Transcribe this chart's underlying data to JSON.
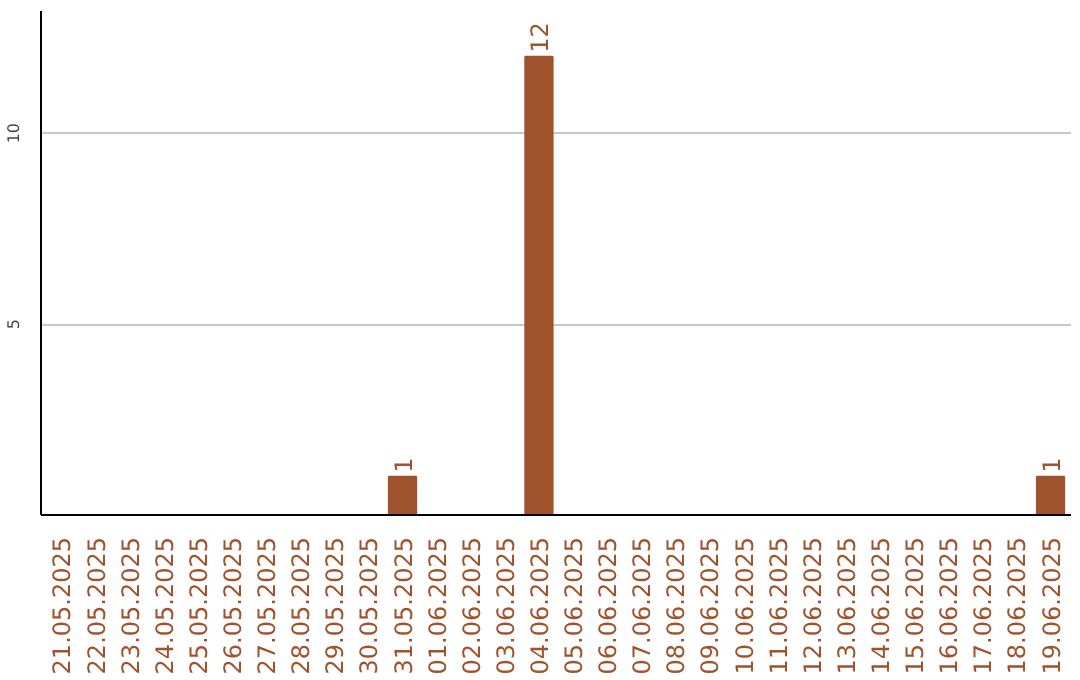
{
  "chart_data": {
    "type": "bar",
    "categories": [
      "21.05.2025",
      "22.05.2025",
      "23.05.2025",
      "24.05.2025",
      "25.05.2025",
      "26.05.2025",
      "27.05.2025",
      "28.05.2025",
      "29.05.2025",
      "30.05.2025",
      "31.05.2025",
      "01.06.2025",
      "02.06.2025",
      "03.06.2025",
      "04.06.2025",
      "05.06.2025",
      "06.06.2025",
      "07.06.2025",
      "08.06.2025",
      "09.06.2025",
      "10.06.2025",
      "11.06.2025",
      "12.06.2025",
      "13.06.2025",
      "14.06.2025",
      "15.06.2025",
      "16.06.2025",
      "17.06.2025",
      "18.06.2025",
      "19.06.2025"
    ],
    "values": [
      0,
      0,
      0,
      0,
      0,
      0,
      0,
      0,
      0,
      0,
      1,
      0,
      0,
      0,
      12,
      0,
      0,
      0,
      0,
      0,
      0,
      0,
      0,
      0,
      0,
      0,
      0,
      0,
      0,
      1
    ],
    "value_labels": [
      null,
      null,
      null,
      null,
      null,
      null,
      null,
      null,
      null,
      null,
      "1",
      null,
      null,
      null,
      "12",
      null,
      null,
      null,
      null,
      null,
      null,
      null,
      null,
      null,
      null,
      null,
      null,
      null,
      null,
      "1"
    ],
    "color": "#a0522d",
    "ylim": [
      0,
      13.2
    ],
    "yticks": [
      5,
      10
    ],
    "grid": "y"
  }
}
